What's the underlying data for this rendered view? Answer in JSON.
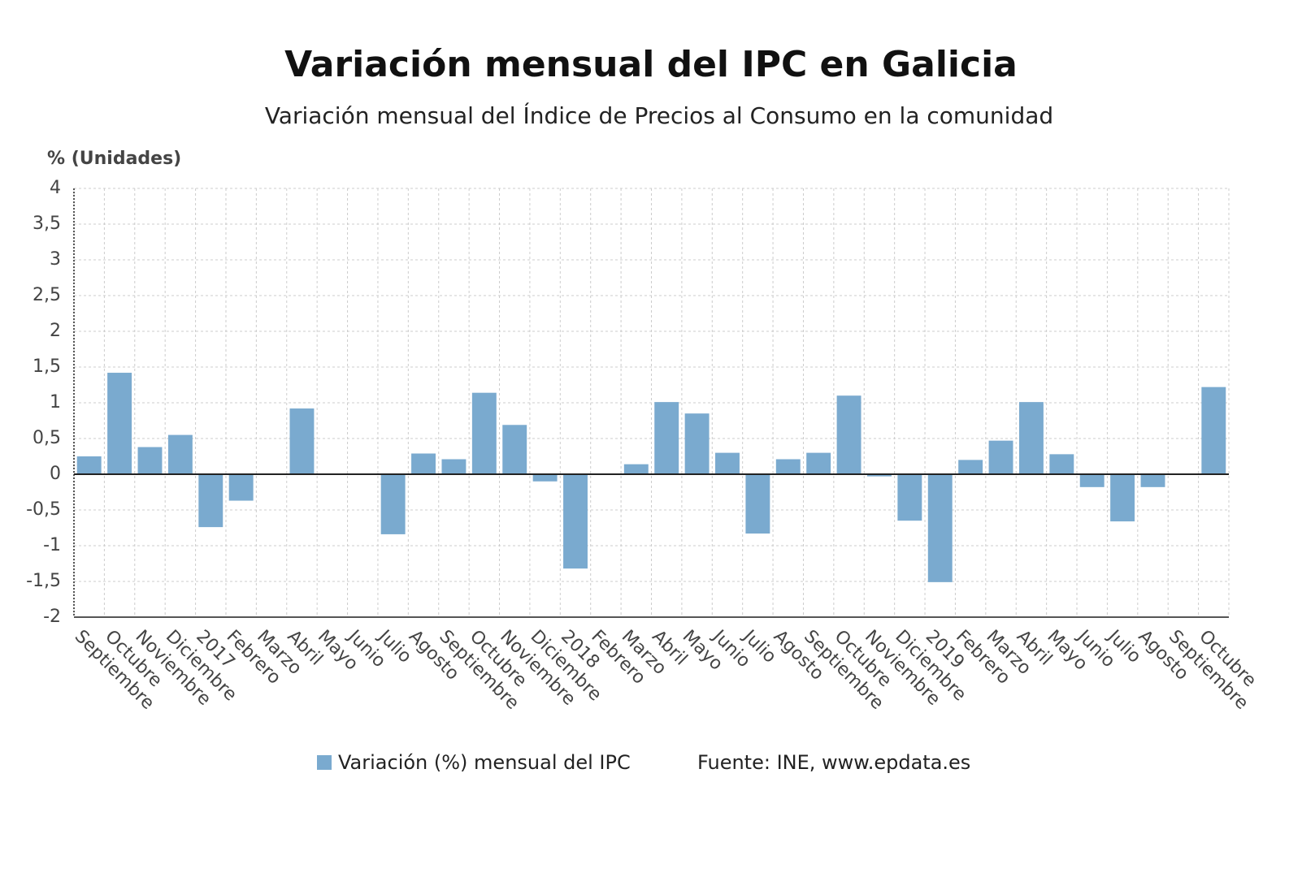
{
  "chart_data": {
    "type": "bar",
    "title": "Variación mensual del IPC en Galicia",
    "subtitle": "Variación mensual del Índice de Precios al Consumo en la comunidad",
    "y_axis_label": "% (Unidades)",
    "source": "Fuente: INE, www.epdata.es",
    "categories": [
      "Septiembre",
      "Octubre",
      "Noviembre",
      "Diciembre",
      "2017",
      "Febrero",
      "Marzo",
      "Abril",
      "Mayo",
      "Junio",
      "Julio",
      "Agosto",
      "Septiembre",
      "Octubre",
      "Noviembre",
      "Diciembre",
      "2018",
      "Febrero",
      "Marzo",
      "Abril",
      "Mayo",
      "Junio",
      "Julio",
      "Agosto",
      "Septiembre",
      "Octubre",
      "Noviembre",
      "Diciembre",
      "2019",
      "Febrero",
      "Marzo",
      "Abril",
      "Mayo",
      "Junio",
      "Julio",
      "Agosto",
      "Septiembre",
      "Octubre"
    ],
    "series": [
      {
        "name": "Variación (%) mensual del IPC",
        "color": "#7aaacf",
        "values": [
          0.25,
          1.42,
          0.38,
          0.55,
          -0.74,
          -0.37,
          0,
          0.92,
          0,
          0,
          -0.84,
          0.29,
          0.21,
          1.14,
          0.69,
          -0.1,
          -1.32,
          0,
          0.14,
          1.01,
          0.85,
          0.3,
          -0.83,
          0.21,
          0.3,
          1.1,
          -0.03,
          -0.65,
          -1.51,
          0.2,
          0.47,
          1.01,
          0.28,
          -0.18,
          -0.66,
          -0.18,
          -0.01,
          1.22
        ]
      }
    ],
    "ylim": [
      -2,
      4
    ],
    "yticks": [
      -2,
      {
        "value": -1.5,
        "label": "-1,5"
      },
      -1,
      {
        "value": -0.5,
        "label": "-0,5"
      },
      0,
      {
        "value": 0.5,
        "label": "0,5"
      },
      1,
      {
        "value": 1.5,
        "label": "1,5"
      },
      2,
      {
        "value": 2.5,
        "label": "2,5"
      },
      3,
      {
        "value": 3.5,
        "label": "3,5"
      },
      4
    ],
    "grid": true
  }
}
